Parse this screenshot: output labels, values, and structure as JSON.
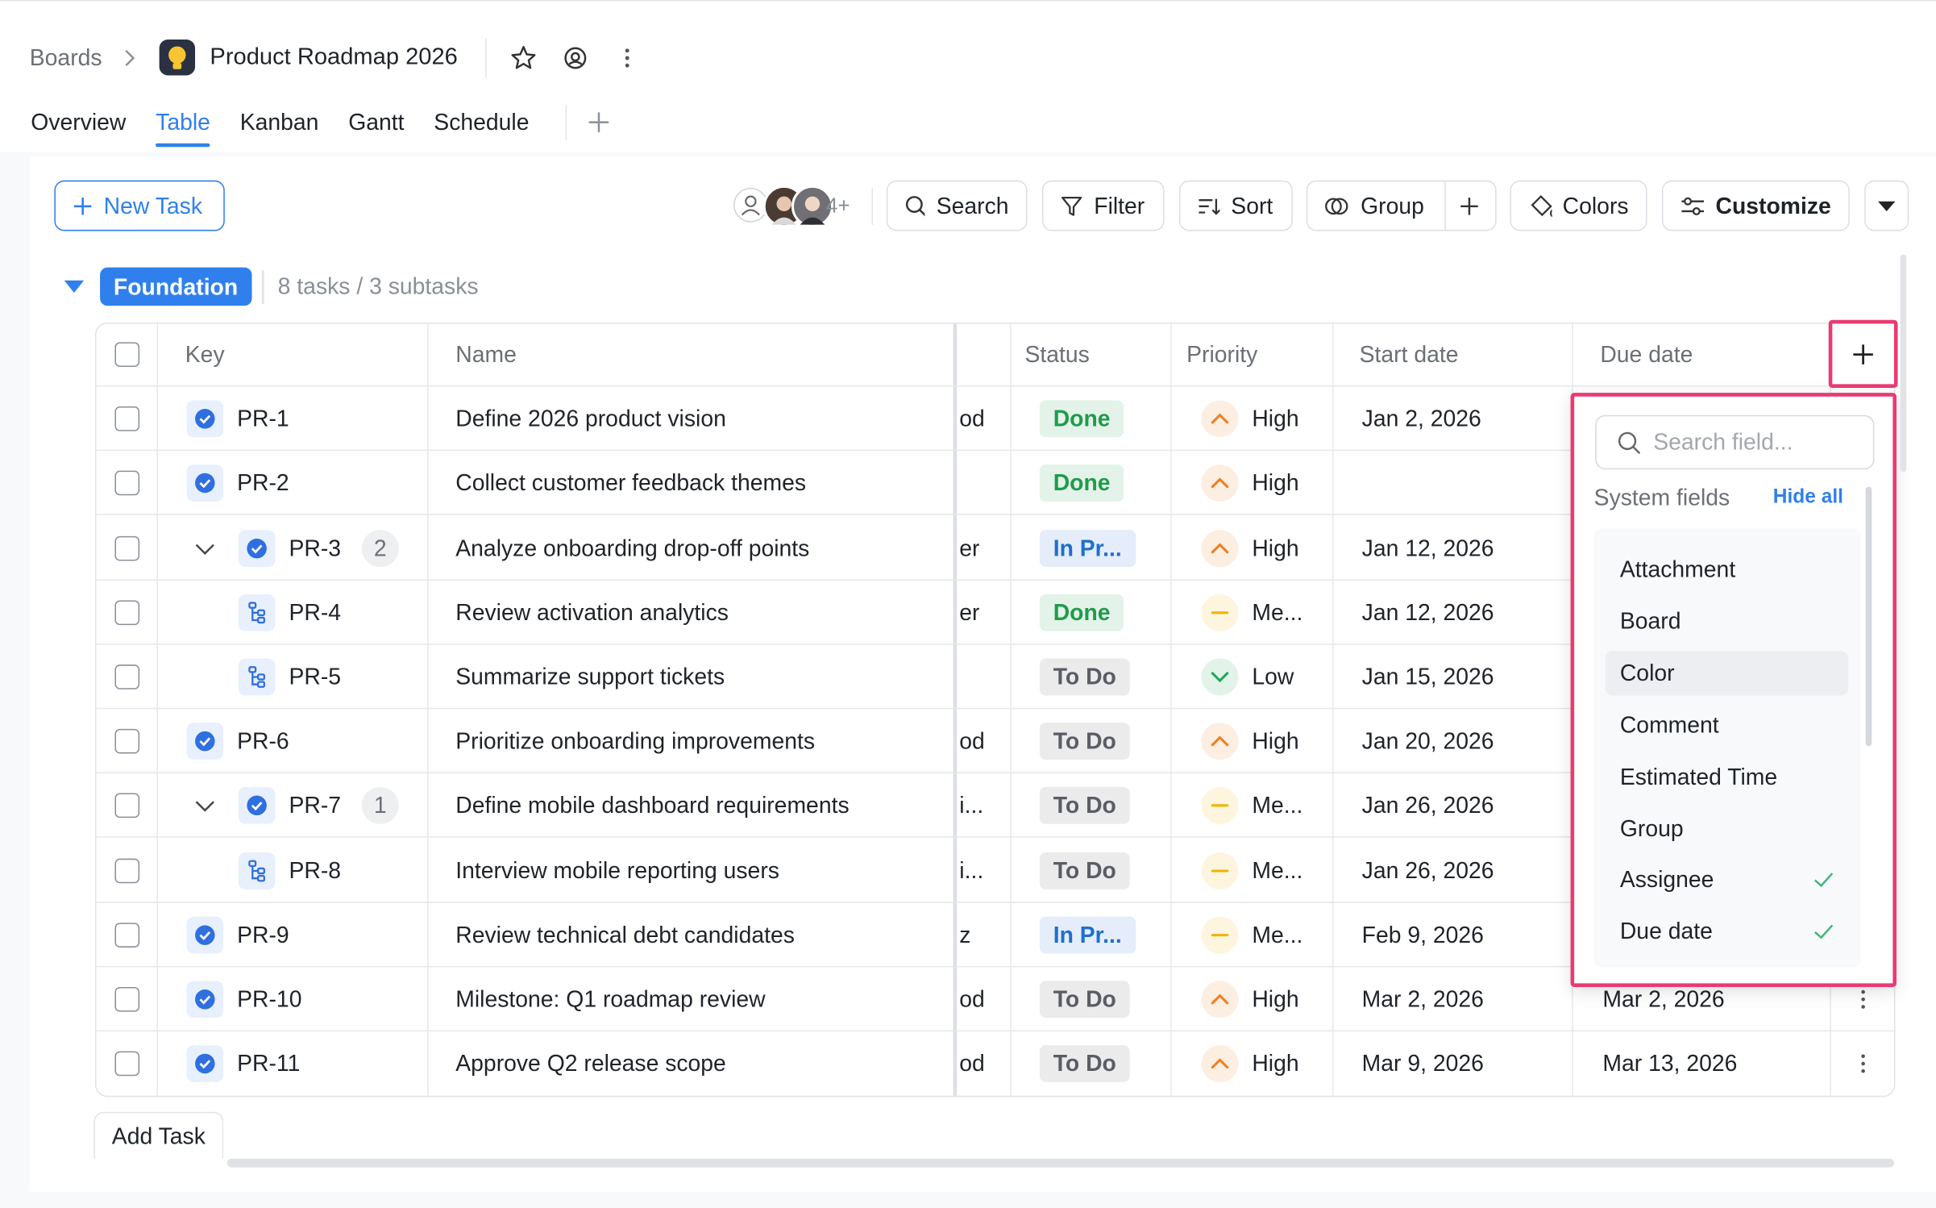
{
  "header": {
    "breadcrumb": "Boards",
    "title": "Product Roadmap 2026"
  },
  "tabs": {
    "items": [
      "Overview",
      "Table",
      "Kanban",
      "Gantt",
      "Schedule"
    ],
    "active": 1
  },
  "toolbar": {
    "new_task": "New Task",
    "members_more": "4+",
    "search": "Search",
    "filter": "Filter",
    "sort": "Sort",
    "group": "Group",
    "colors": "Colors",
    "customize": "Customize"
  },
  "group": {
    "name": "Foundation",
    "summary": "8 tasks / 3 subtasks"
  },
  "table": {
    "columns": [
      "Key",
      "Name",
      "Status",
      "Priority",
      "Start date",
      "Due date"
    ],
    "rows": [
      {
        "key": "PR-1",
        "name": "Define 2026 product vision",
        "clipped": "od",
        "status": "Done",
        "status_color": "#1f9d4c",
        "priority": "High",
        "priority_color": "#f07f1f",
        "priority_icon": "up",
        "start_date": "Jan 2, 2026"
      },
      {
        "key": "PR-2",
        "name": "Collect customer feedback themes",
        "status": "Done",
        "status_color": "#1f9d4c",
        "priority": "High",
        "priority_color": "#f07f1f",
        "priority_icon": "up"
      },
      {
        "key": "PR-3",
        "name": "Analyze onboarding drop-off points",
        "clipped": "er",
        "status": "In Pr...",
        "status_color": "#1f6fd1",
        "priority": "High",
        "priority_color": "#f07f1f",
        "priority_icon": "up",
        "start_date": "Jan 12, 2026",
        "subtask_count": 2,
        "subtasks": [
          {
            "key": "PR-4",
            "name": "Review activation analytics",
            "clipped": "er",
            "status": "Done",
            "status_color": "#1f9d4c",
            "priority": "Me...",
            "priority_color": "#f0b400",
            "priority_icon": "dash",
            "start_date": "Jan 12, 2026"
          },
          {
            "key": "PR-5",
            "name": "Summarize support tickets",
            "status": "To Do",
            "status_color": "#5a5e66",
            "priority": "Low",
            "priority_color": "#22a85a",
            "priority_icon": "down",
            "start_date": "Jan 15, 2026"
          }
        ]
      },
      {
        "key": "PR-6",
        "name": "Prioritize onboarding improvements",
        "clipped": "od",
        "status": "To Do",
        "status_color": "#5a5e66",
        "priority": "High",
        "priority_color": "#f07f1f",
        "priority_icon": "up",
        "start_date": "Jan 20, 2026"
      },
      {
        "key": "PR-7",
        "name": "Define mobile dashboard requirements",
        "clipped": "i...",
        "status": "To Do",
        "status_color": "#5a5e66",
        "priority": "Me...",
        "priority_color": "#f0b400",
        "priority_icon": "dash",
        "start_date": "Jan 26, 2026",
        "subtask_count": 1,
        "subtasks": [
          {
            "key": "PR-8",
            "name": "Interview mobile reporting users",
            "clipped": "i...",
            "status": "To Do",
            "status_color": "#5a5e66",
            "priority": "Me...",
            "priority_color": "#f0b400",
            "priority_icon": "dash",
            "start_date": "Jan 26, 2026"
          }
        ]
      },
      {
        "key": "PR-9",
        "name": "Review technical debt candidates",
        "clipped": "z",
        "status": "In Pr...",
        "status_color": "#1f6fd1",
        "priority": "Me...",
        "priority_color": "#f0b400",
        "priority_icon": "dash",
        "start_date": "Feb 9, 2026"
      },
      {
        "key": "PR-10",
        "name": "Milestone: Q1 roadmap review",
        "clipped": "od",
        "status": "To Do",
        "status_color": "#5a5e66",
        "priority": "High",
        "priority_color": "#f07f1f",
        "priority_icon": "up",
        "start_date": "Mar 2, 2026",
        "due_date": "Mar 2, 2026"
      },
      {
        "key": "PR-11",
        "name": "Approve Q2 release scope",
        "clipped": "od",
        "status": "To Do",
        "status_color": "#5a5e66",
        "priority": "High",
        "priority_color": "#f07f1f",
        "priority_icon": "up",
        "start_date": "Mar 9, 2026",
        "due_date": "Mar 13, 2026"
      }
    ]
  },
  "field_menu": {
    "search_placeholder": "Search field...",
    "section": "System fields",
    "hide_all": "Hide all",
    "fields": [
      {
        "label": "Attachment",
        "checked": false
      },
      {
        "label": "Board",
        "checked": false
      },
      {
        "label": "Color",
        "checked": false,
        "highlighted": true
      },
      {
        "label": "Comment",
        "checked": false
      },
      {
        "label": "Estimated Time",
        "checked": false
      },
      {
        "label": "Group",
        "checked": false
      },
      {
        "label": "Assignee",
        "checked": true
      },
      {
        "label": "Due date",
        "checked": true
      }
    ]
  },
  "add_task": "Add Task"
}
